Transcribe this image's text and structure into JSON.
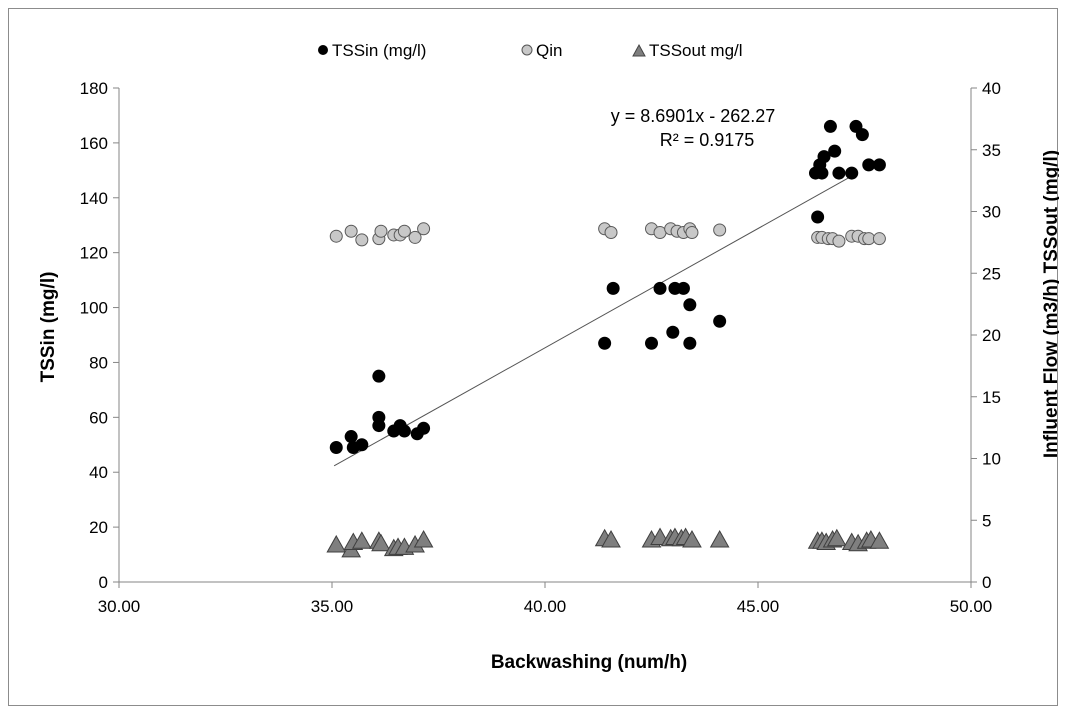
{
  "chart_data": {
    "type": "scatter",
    "xlabel": "Backwashing (num/h)",
    "ylabel": "TSSin (mg/l)",
    "y2label": "Influent Flow (m3/h) TSSout (mg/l)",
    "xlim": [
      30,
      50
    ],
    "ylim": [
      0,
      180
    ],
    "y2lim": [
      0,
      40
    ],
    "xticks": [
      "30.00",
      "35.00",
      "40.00",
      "45.00",
      "50.00"
    ],
    "yticks": [
      "0",
      "20",
      "40",
      "60",
      "80",
      "100",
      "120",
      "140",
      "160",
      "180"
    ],
    "y2ticks": [
      "0",
      "5",
      "10",
      "15",
      "20",
      "25",
      "30",
      "35",
      "40"
    ],
    "grid": false,
    "legend_position": "top",
    "trendline": {
      "equation": "y = 8.6901x - 262.27",
      "r2": "R² = 0.9175",
      "slope": 8.6901,
      "intercept": -262.27,
      "x_range": [
        35.05,
        47.3
      ]
    },
    "series": [
      {
        "name": "TSSin (mg/l)",
        "axis": "left",
        "marker": "circle",
        "color": "#000000",
        "points": [
          [
            35.1,
            49
          ],
          [
            35.45,
            53
          ],
          [
            35.5,
            49
          ],
          [
            35.7,
            50
          ],
          [
            36.1,
            75
          ],
          [
            36.1,
            60
          ],
          [
            36.1,
            57
          ],
          [
            36.45,
            55
          ],
          [
            36.6,
            57
          ],
          [
            36.7,
            55
          ],
          [
            37.0,
            54
          ],
          [
            37.15,
            56
          ],
          [
            41.4,
            87
          ],
          [
            41.6,
            107
          ],
          [
            42.5,
            87
          ],
          [
            42.7,
            107
          ],
          [
            43.0,
            91
          ],
          [
            43.05,
            107
          ],
          [
            43.25,
            107
          ],
          [
            43.4,
            101
          ],
          [
            43.4,
            87
          ],
          [
            44.1,
            95
          ],
          [
            46.35,
            149
          ],
          [
            46.4,
            133
          ],
          [
            46.45,
            152
          ],
          [
            46.5,
            149
          ],
          [
            46.55,
            155
          ],
          [
            46.7,
            166
          ],
          [
            46.8,
            157
          ],
          [
            46.9,
            149
          ],
          [
            47.2,
            149
          ],
          [
            47.3,
            166
          ],
          [
            47.45,
            163
          ],
          [
            47.6,
            152
          ],
          [
            47.85,
            152
          ]
        ]
      },
      {
        "name": "Qin",
        "axis": "right",
        "marker": "circle",
        "color": "#c8c8c8",
        "points": [
          [
            35.1,
            28.0
          ],
          [
            35.45,
            28.4
          ],
          [
            35.7,
            27.7
          ],
          [
            36.1,
            27.8
          ],
          [
            36.15,
            28.4
          ],
          [
            36.45,
            28.1
          ],
          [
            36.6,
            28.1
          ],
          [
            36.7,
            28.4
          ],
          [
            36.95,
            27.9
          ],
          [
            37.15,
            28.6
          ],
          [
            41.4,
            28.6
          ],
          [
            41.55,
            28.3
          ],
          [
            42.5,
            28.6
          ],
          [
            42.7,
            28.3
          ],
          [
            42.95,
            28.6
          ],
          [
            43.1,
            28.4
          ],
          [
            43.25,
            28.3
          ],
          [
            43.4,
            28.6
          ],
          [
            43.45,
            28.3
          ],
          [
            44.1,
            28.5
          ],
          [
            46.4,
            27.9
          ],
          [
            46.5,
            27.9
          ],
          [
            46.65,
            27.8
          ],
          [
            46.75,
            27.8
          ],
          [
            46.9,
            27.6
          ],
          [
            47.2,
            28.0
          ],
          [
            47.35,
            28.0
          ],
          [
            47.5,
            27.8
          ],
          [
            47.6,
            27.8
          ],
          [
            47.85,
            27.8
          ]
        ]
      },
      {
        "name": "TSSout mg/l",
        "axis": "right",
        "marker": "triangle",
        "color": "#7f7f7f",
        "points": [
          [
            35.1,
            3.0
          ],
          [
            35.45,
            2.6
          ],
          [
            35.5,
            3.2
          ],
          [
            35.7,
            3.3
          ],
          [
            36.1,
            3.3
          ],
          [
            36.15,
            3.1
          ],
          [
            36.45,
            2.7
          ],
          [
            36.55,
            2.8
          ],
          [
            36.7,
            2.8
          ],
          [
            36.95,
            3.0
          ],
          [
            37.15,
            3.4
          ],
          [
            41.4,
            3.5
          ],
          [
            41.55,
            3.4
          ],
          [
            42.5,
            3.4
          ],
          [
            42.7,
            3.6
          ],
          [
            42.95,
            3.5
          ],
          [
            43.05,
            3.6
          ],
          [
            43.2,
            3.5
          ],
          [
            43.3,
            3.6
          ],
          [
            43.45,
            3.4
          ],
          [
            44.1,
            3.4
          ],
          [
            46.4,
            3.3
          ],
          [
            46.5,
            3.3
          ],
          [
            46.6,
            3.2
          ],
          [
            46.75,
            3.4
          ],
          [
            46.85,
            3.5
          ],
          [
            47.2,
            3.2
          ],
          [
            47.35,
            3.1
          ],
          [
            47.55,
            3.3
          ],
          [
            47.65,
            3.4
          ],
          [
            47.85,
            3.3
          ]
        ]
      }
    ]
  }
}
